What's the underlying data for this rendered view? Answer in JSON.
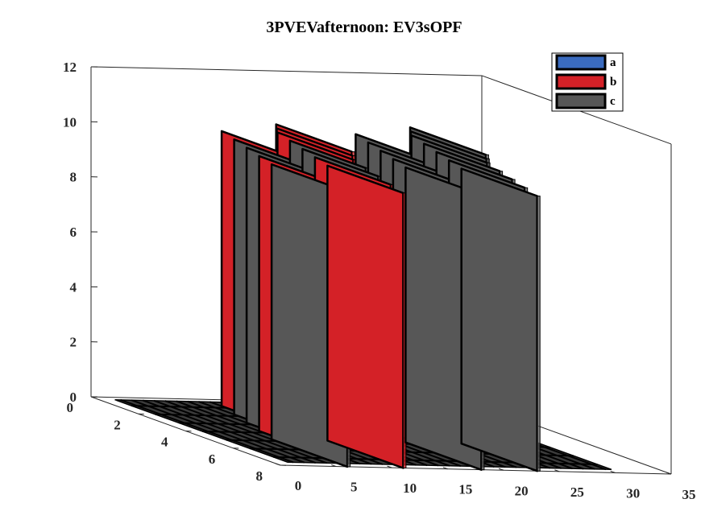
{
  "chart_data": {
    "type": "bar3d",
    "title": "3PVEVafternoon: EV3sOPF",
    "xlabel": "",
    "ylabel": "",
    "zlabel": "",
    "x_ticks": [
      "0",
      "5",
      "10",
      "15",
      "20",
      "25",
      "30",
      "35"
    ],
    "y_ticks": [
      "0",
      "2",
      "4",
      "6",
      "8"
    ],
    "z_ticks": [
      "0",
      "2",
      "4",
      "6",
      "8",
      "10",
      "12"
    ],
    "xlim": [
      0,
      35
    ],
    "ylim": [
      0,
      8
    ],
    "zlim": [
      0,
      12
    ],
    "legend_position": "top-right",
    "colors": {
      "a": "#3a6bbf",
      "b": "#d42127",
      "c": "#575757",
      "base": "#3c3c3c",
      "edge": "#000000"
    },
    "series": [
      {
        "name": "a",
        "values": []
      },
      {
        "name": "b",
        "values": []
      },
      {
        "name": "c",
        "values": []
      }
    ],
    "walls": [
      {
        "x": 6,
        "y": 8,
        "height": 10.0,
        "series": "c"
      },
      {
        "x": 7,
        "y": 7,
        "height": 10.0,
        "series": "b"
      },
      {
        "x": 8,
        "y": 6,
        "height": 10.0,
        "series": "c"
      },
      {
        "x": 9,
        "y": 5,
        "height": 10.0,
        "series": "c"
      },
      {
        "x": 10,
        "y": 4,
        "height": 10.0,
        "series": "b"
      },
      {
        "x": 11,
        "y": 8,
        "height": 10.0,
        "series": "b"
      },
      {
        "x": 12,
        "y": 7,
        "height": 10.0,
        "series": "b"
      },
      {
        "x": 13,
        "y": 6,
        "height": 10.0,
        "series": "c"
      },
      {
        "x": 14,
        "y": 5,
        "height": 10.0,
        "series": "c"
      },
      {
        "x": 15,
        "y": 4,
        "height": 10.0,
        "series": "b"
      },
      {
        "x": 16,
        "y": 3.5,
        "height": 10.0,
        "series": "b"
      },
      {
        "x": 17,
        "y": 3,
        "height": 10.0,
        "series": "b"
      },
      {
        "x": 18,
        "y": 8,
        "height": 10.0,
        "series": "c"
      },
      {
        "x": 19,
        "y": 7,
        "height": 10.0,
        "series": "c"
      },
      {
        "x": 20,
        "y": 6,
        "height": 10.0,
        "series": "c"
      },
      {
        "x": 21,
        "y": 5,
        "height": 10.0,
        "series": "c"
      },
      {
        "x": 22,
        "y": 4,
        "height": 10.0,
        "series": "c"
      },
      {
        "x": 23,
        "y": 8,
        "height": 10.0,
        "series": "c"
      },
      {
        "x": 24,
        "y": 7,
        "height": 10.0,
        "series": "c"
      },
      {
        "x": 25,
        "y": 6,
        "height": 10.0,
        "series": "c"
      },
      {
        "x": 26,
        "y": 5,
        "height": 10.0,
        "series": "c"
      },
      {
        "x": 27,
        "y": 4,
        "height": 10.0,
        "series": "c"
      },
      {
        "x": 28,
        "y": 3.5,
        "height": 10.0,
        "series": "c"
      },
      {
        "x": 29,
        "y": 3,
        "height": 10.0,
        "series": "c"
      }
    ],
    "grid": false,
    "box": true
  }
}
